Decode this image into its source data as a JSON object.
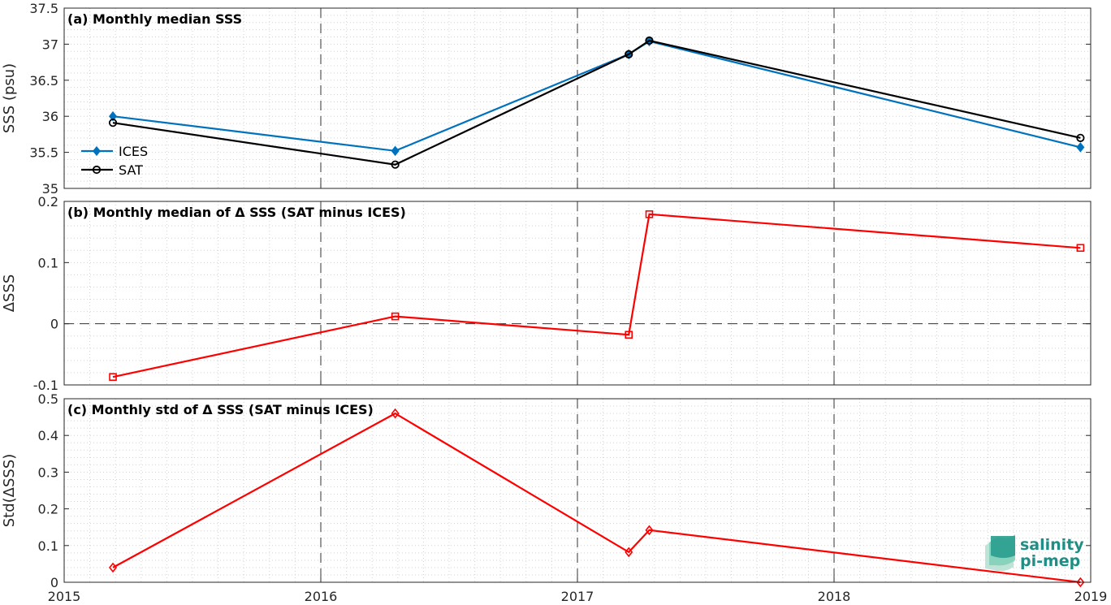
{
  "chart_data": [
    {
      "type": "line",
      "title": "(a) Monthly median SSS",
      "xlabel": "",
      "ylabel": "SSS (psu)",
      "xlim": [
        2015,
        2019
      ],
      "ylim": [
        35,
        37.5
      ],
      "xticks": [
        "2015",
        "2016",
        "2017",
        "2018",
        "2019"
      ],
      "yticks": [
        "35",
        "35.5",
        "36",
        "36.5",
        "37",
        "37.5"
      ],
      "grid": "minor dotted",
      "legend": "left",
      "series": [
        {
          "name": "ICES",
          "color": "#0072bd",
          "marker": "diamond",
          "x": [
            2015.19,
            2016.29,
            2017.2,
            2017.28,
            2018.96
          ],
          "y": [
            36.0,
            35.52,
            36.86,
            37.04,
            35.57
          ]
        },
        {
          "name": "SAT",
          "color": "#000000",
          "marker": "circle",
          "x": [
            2015.19,
            2016.29,
            2017.2,
            2017.28,
            2018.96
          ],
          "y": [
            35.91,
            35.33,
            36.86,
            37.05,
            35.7
          ]
        }
      ]
    },
    {
      "type": "line",
      "title": "(b) Monthly median of Δ SSS (SAT minus ICES)",
      "xlabel": "",
      "ylabel": "ΔSSS",
      "xlim": [
        2015,
        2019
      ],
      "ylim": [
        -0.1,
        0.2
      ],
      "yticks": [
        "-0.1",
        "0",
        "0.1",
        "0.2"
      ],
      "grid": "minor dotted",
      "reference_line_y": 0,
      "series": [
        {
          "color": "#ff0000",
          "marker": "square",
          "x": [
            2015.19,
            2016.29,
            2017.2,
            2017.28,
            2018.96
          ],
          "y": [
            -0.087,
            0.012,
            -0.018,
            0.179,
            0.124
          ]
        }
      ]
    },
    {
      "type": "line",
      "title": "(c) Monthly std of Δ SSS (SAT minus ICES)",
      "xlabel": "",
      "ylabel": "Std(ΔSSS)",
      "xlim": [
        2015,
        2019
      ],
      "ylim": [
        0,
        0.5
      ],
      "xticks": [
        "2015",
        "2016",
        "2017",
        "2018",
        "2019"
      ],
      "yticks": [
        "0",
        "0.1",
        "0.2",
        "0.3",
        "0.4",
        "0.5"
      ],
      "grid": "minor dotted",
      "series": [
        {
          "color": "#ff0000",
          "marker": "diamond",
          "x": [
            2015.19,
            2016.29,
            2017.2,
            2017.28,
            2018.96
          ],
          "y": [
            0.04,
            0.46,
            0.082,
            0.142,
            0.0
          ]
        }
      ]
    }
  ],
  "logo": {
    "line1": "salinity",
    "line2": "pi-mep",
    "color": "#1f8f86"
  }
}
